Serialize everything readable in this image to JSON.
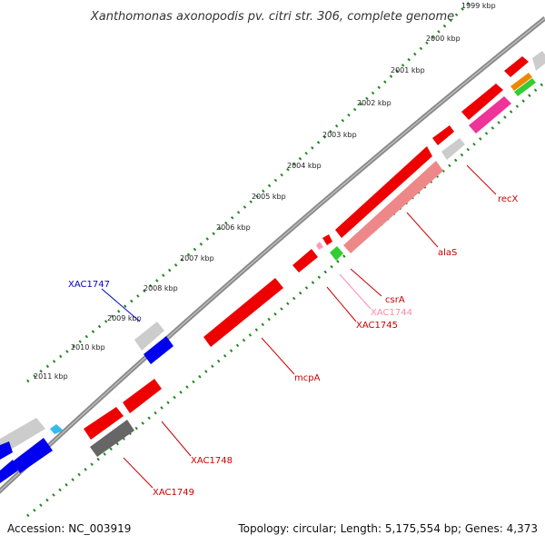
{
  "title": "Xanthomonas axonopodis pv. citri str. 306, complete genome",
  "kbp_labels": [
    "1999 kbp",
    "2000 kbp",
    "2001 kbp",
    "2002 kbp",
    "2003 kbp",
    "2004 kbp",
    "2005 kbp",
    "2006 kbp",
    "2007 kbp",
    "2008 kbp",
    "2009 kbp",
    "2010 kbp",
    "2011 kbp"
  ],
  "gene_labels": [
    {
      "text": "recX",
      "color": "#cc0000"
    },
    {
      "text": "alaS",
      "color": "#cc0000"
    },
    {
      "text": "csrA",
      "color": "#cc0000"
    },
    {
      "text": "XAC1744",
      "color": "#ff88aa"
    },
    {
      "text": "XAC1745",
      "color": "#cc0000"
    },
    {
      "text": "mcpA",
      "color": "#cc0000"
    },
    {
      "text": "XAC1747",
      "color": "#0000cc"
    },
    {
      "text": "XAC1748",
      "color": "#cc0000"
    },
    {
      "text": "XAC1749",
      "color": "#cc0000"
    }
  ],
  "footer": {
    "accession": "Accession: NC_003919",
    "info": "Topology: circular; Length: 5,175,554 bp; Genes: 4,373"
  },
  "colors": {
    "red": "#ee0000",
    "blue": "#0000ee",
    "gray": "#bbbbbb",
    "darkgray": "#666666",
    "pink": "#ee3399",
    "salmon": "#ee8888",
    "green": "#33cc33",
    "orange": "#ee8800",
    "cyan": "#33bbee",
    "tick": "#228822",
    "backbone": "#888888"
  }
}
